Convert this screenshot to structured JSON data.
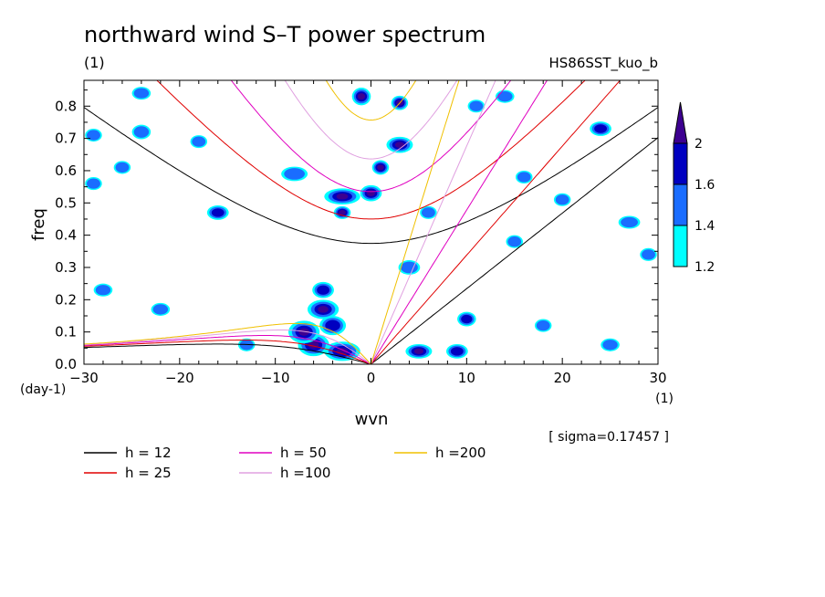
{
  "chart_data": {
    "type": "heatmap",
    "title": "northward wind S–T power spectrum",
    "subtitle": "(1)",
    "experiment": "HS86SST_kuo_b",
    "xlabel": "wvn",
    "xunit": "(1)",
    "ylabel": "freq",
    "yunit": "(day-1)",
    "xlim": [
      -30,
      30
    ],
    "ylim": [
      0,
      0.88
    ],
    "xticks": [
      -30,
      -20,
      -10,
      0,
      10,
      20,
      30
    ],
    "yticks": [
      0.0,
      0.1,
      0.2,
      0.3,
      0.4,
      0.5,
      0.6,
      0.7,
      0.8
    ],
    "sigma_label": "[ sigma=0.17457 ]",
    "colorbar": {
      "levels": [
        1.2,
        1.4,
        1.6,
        2
      ],
      "labels": [
        "1.2",
        "1.4",
        "1.6",
        "2"
      ],
      "colors": [
        "#00ffff",
        "#1a6dff",
        "#0000c0",
        "#3d0090"
      ]
    },
    "blobs": [
      {
        "x": -3,
        "y": 0.04,
        "w": 3,
        "h": 0.04,
        "level": 3
      },
      {
        "x": -6,
        "y": 0.06,
        "w": 2.5,
        "h": 0.05,
        "level": 3
      },
      {
        "x": -7,
        "y": 0.1,
        "w": 2.5,
        "h": 0.05,
        "level": 3
      },
      {
        "x": -5,
        "y": 0.17,
        "w": 2.5,
        "h": 0.04,
        "level": 3
      },
      {
        "x": -5,
        "y": 0.23,
        "w": 1.5,
        "h": 0.03,
        "level": 2
      },
      {
        "x": -4,
        "y": 0.12,
        "w": 2,
        "h": 0.04,
        "level": 2
      },
      {
        "x": 5,
        "y": 0.04,
        "w": 2,
        "h": 0.025,
        "level": 3
      },
      {
        "x": 9,
        "y": 0.04,
        "w": 1.5,
        "h": 0.025,
        "level": 2
      },
      {
        "x": 10,
        "y": 0.14,
        "w": 1.2,
        "h": 0.025,
        "level": 2
      },
      {
        "x": -3,
        "y": 0.52,
        "w": 3,
        "h": 0.03,
        "level": 3
      },
      {
        "x": 0,
        "y": 0.53,
        "w": 1.5,
        "h": 0.03,
        "level": 3
      },
      {
        "x": -3,
        "y": 0.47,
        "w": 1,
        "h": 0.02,
        "level": 3
      },
      {
        "x": 1,
        "y": 0.61,
        "w": 1,
        "h": 0.025,
        "level": 3
      },
      {
        "x": 3,
        "y": 0.68,
        "w": 2,
        "h": 0.03,
        "level": 3
      },
      {
        "x": -1,
        "y": 0.83,
        "w": 1.2,
        "h": 0.035,
        "level": 3
      },
      {
        "x": 3,
        "y": 0.81,
        "w": 1,
        "h": 0.025,
        "level": 3
      },
      {
        "x": -16,
        "y": 0.47,
        "w": 1.5,
        "h": 0.025,
        "level": 2
      },
      {
        "x": -24,
        "y": 0.72,
        "w": 1.2,
        "h": 0.025,
        "level": 1
      },
      {
        "x": 24,
        "y": 0.73,
        "w": 1.5,
        "h": 0.025,
        "level": 2
      },
      {
        "x": -29,
        "y": 0.71,
        "w": 1,
        "h": 0.02,
        "level": 1
      },
      {
        "x": -26,
        "y": 0.61,
        "w": 1,
        "h": 0.02,
        "level": 1
      },
      {
        "x": 20,
        "y": 0.51,
        "w": 1,
        "h": 0.02,
        "level": 1
      },
      {
        "x": 15,
        "y": 0.38,
        "w": 1,
        "h": 0.02,
        "level": 1
      },
      {
        "x": 4,
        "y": 0.3,
        "w": 1.5,
        "h": 0.025,
        "level": 1
      },
      {
        "x": 6,
        "y": 0.47,
        "w": 1,
        "h": 0.02,
        "level": 1
      },
      {
        "x": -8,
        "y": 0.59,
        "w": 2,
        "h": 0.025,
        "level": 1
      },
      {
        "x": -22,
        "y": 0.17,
        "w": 1.2,
        "h": 0.02,
        "level": 1
      },
      {
        "x": -28,
        "y": 0.23,
        "w": 1.2,
        "h": 0.02,
        "level": 1
      },
      {
        "x": 27,
        "y": 0.44,
        "w": 1.5,
        "h": 0.02,
        "level": 1
      },
      {
        "x": 29,
        "y": 0.34,
        "w": 1,
        "h": 0.02,
        "level": 1
      },
      {
        "x": 18,
        "y": 0.12,
        "w": 1,
        "h": 0.02,
        "level": 1
      },
      {
        "x": 25,
        "y": 0.06,
        "w": 1.2,
        "h": 0.02,
        "level": 1
      },
      {
        "x": -13,
        "y": 0.06,
        "w": 1,
        "h": 0.02,
        "level": 1
      },
      {
        "x": 11,
        "y": 0.8,
        "w": 1,
        "h": 0.02,
        "level": 1
      },
      {
        "x": 14,
        "y": 0.83,
        "w": 1.2,
        "h": 0.02,
        "level": 1
      },
      {
        "x": -24,
        "y": 0.84,
        "w": 1.2,
        "h": 0.02,
        "level": 1
      },
      {
        "x": -29,
        "y": 0.56,
        "w": 1,
        "h": 0.02,
        "level": 1
      },
      {
        "x": -18,
        "y": 0.69,
        "w": 1,
        "h": 0.02,
        "level": 1
      },
      {
        "x": 16,
        "y": 0.58,
        "w": 1,
        "h": 0.02,
        "level": 1
      }
    ],
    "dispersion_curves": [
      {
        "name": "h = 12",
        "h": 12,
        "color": "#000000"
      },
      {
        "name": "h = 25",
        "h": 25,
        "color": "#e00000"
      },
      {
        "name": "h = 50",
        "h": 50,
        "color": "#e000c0"
      },
      {
        "name": "h =100",
        "h": 100,
        "color": "#e0a0e0"
      },
      {
        "name": "h =200",
        "h": 200,
        "color": "#f0c000"
      }
    ]
  }
}
